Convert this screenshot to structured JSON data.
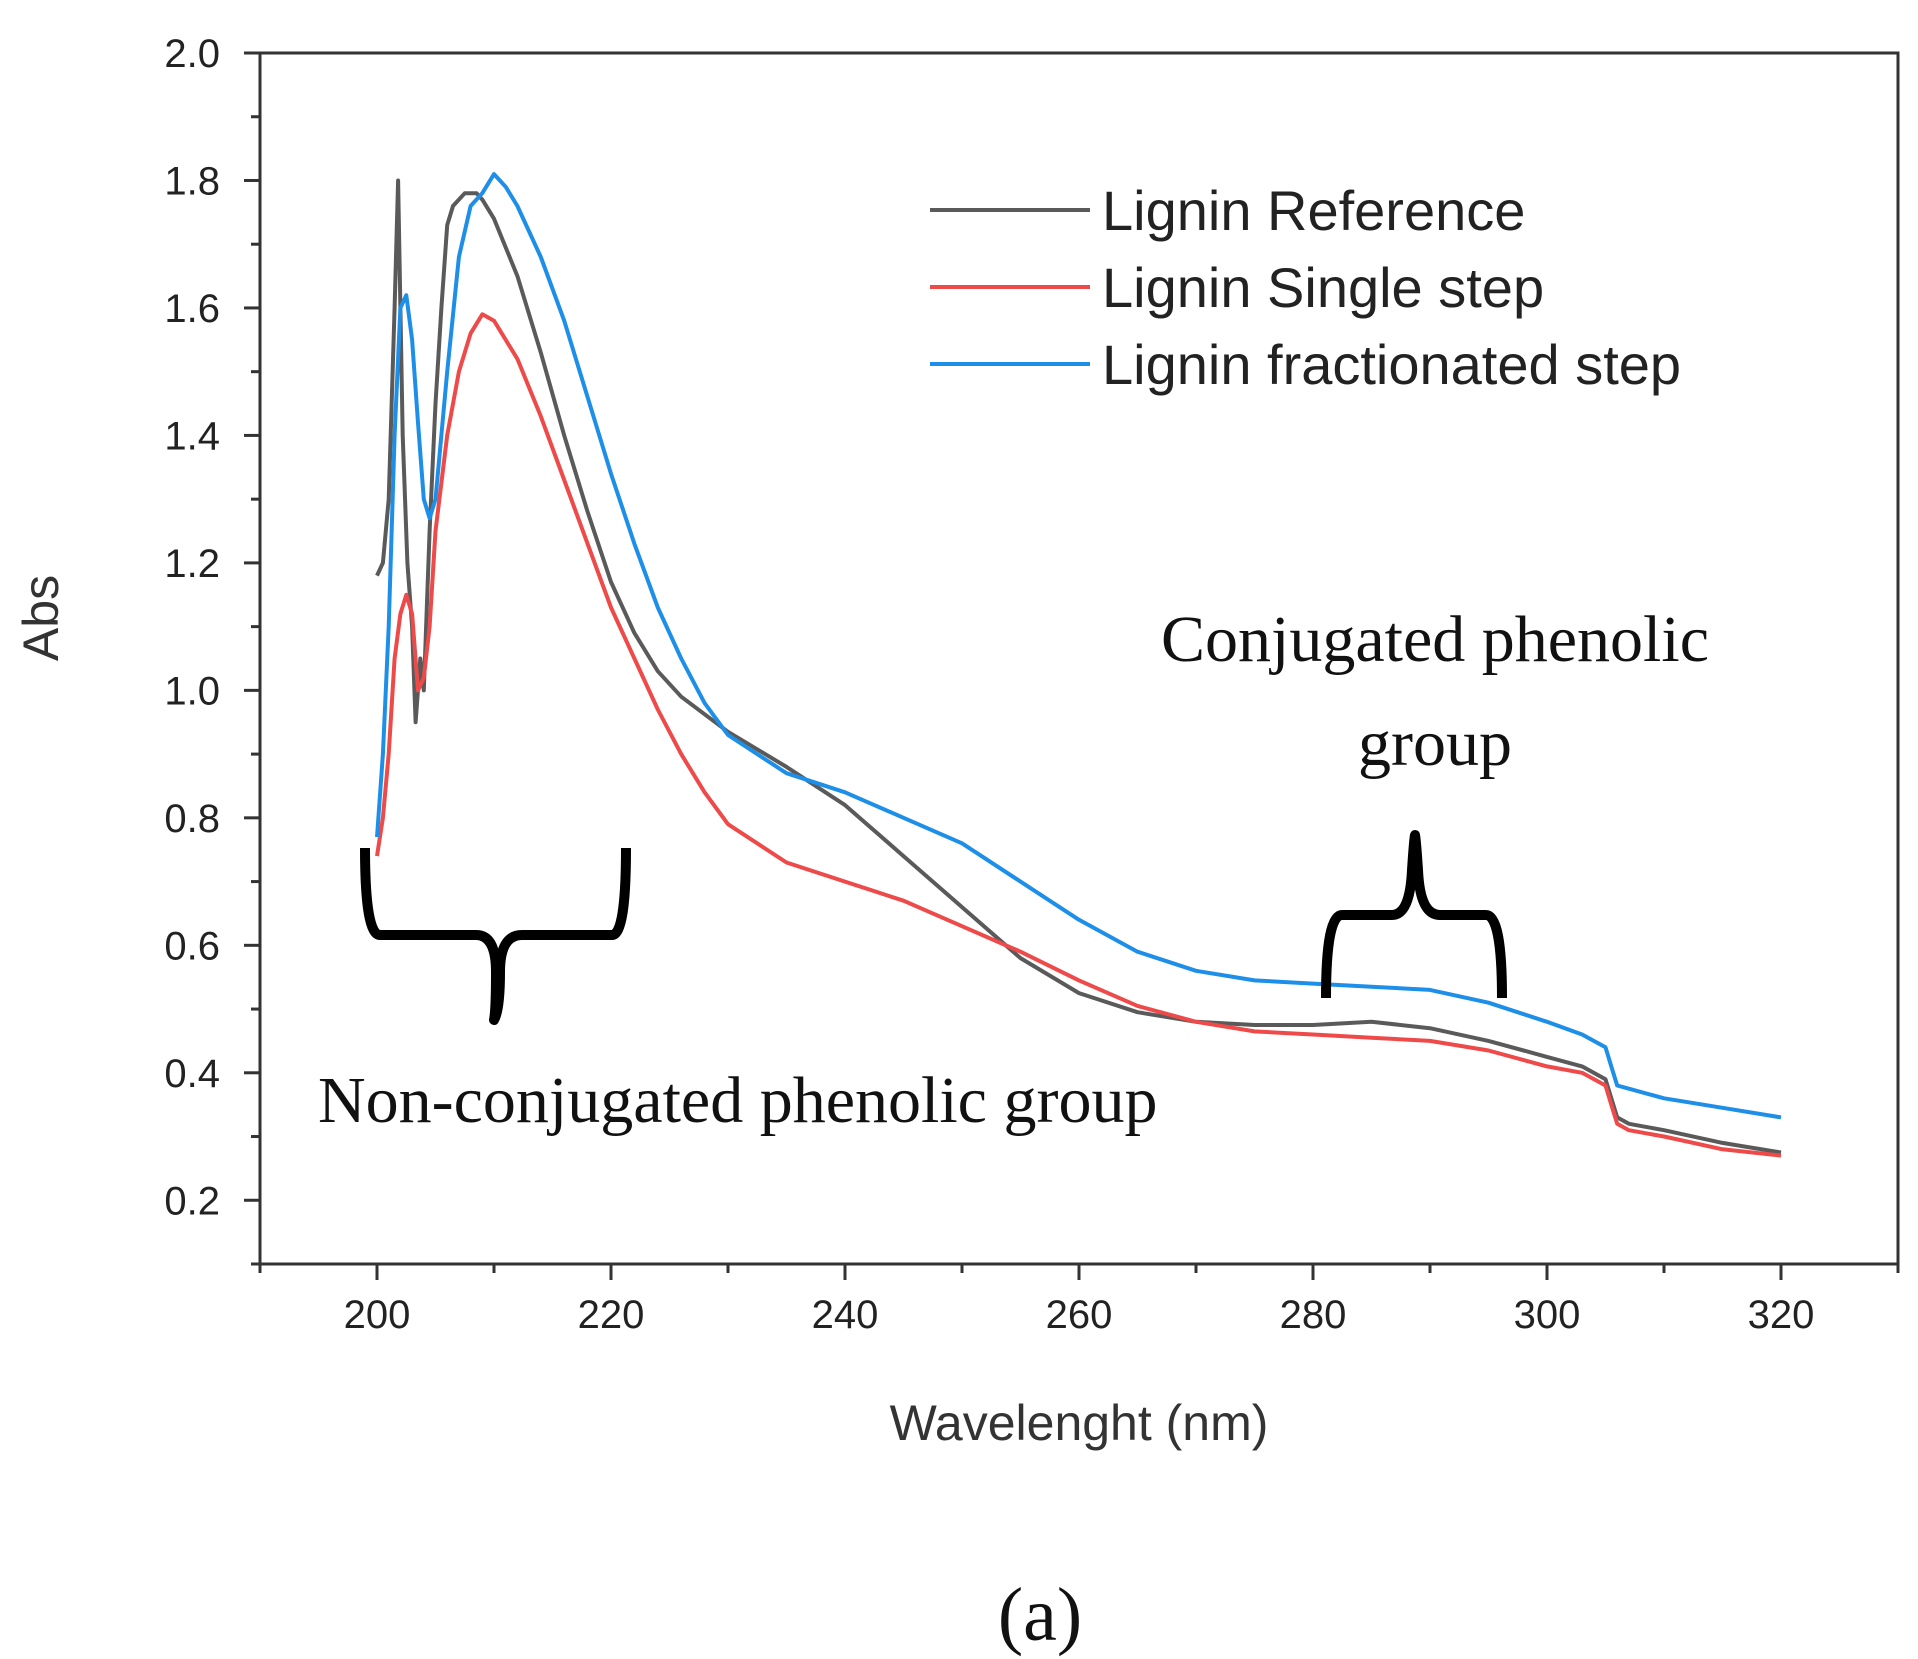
{
  "chart_data": {
    "type": "line",
    "title": "",
    "xlabel": "Wavelenght (nm)",
    "ylabel": "Abs",
    "xlim": [
      190,
      330
    ],
    "ylim": [
      0.1,
      2.0
    ],
    "xticks": [
      200,
      220,
      240,
      260,
      280,
      300,
      320
    ],
    "yticks": [
      0.2,
      0.4,
      0.6,
      0.8,
      1.0,
      1.2,
      1.4,
      1.6,
      1.8,
      2.0
    ],
    "xtick_labels": [
      "200",
      "220",
      "240",
      "260",
      "280",
      "300",
      "320"
    ],
    "ytick_labels": [
      "0.2",
      "0.4",
      "0.6",
      "0.8",
      "1.0",
      "1.2",
      "1.4",
      "1.6",
      "1.8",
      "2.0"
    ],
    "grid": false,
    "legend_position": "top-right",
    "panel_label": "(a)",
    "series": [
      {
        "name": "Lignin Reference",
        "color": "#5a5a5a",
        "points": [
          [
            200,
            1.18
          ],
          [
            200.5,
            1.2
          ],
          [
            201,
            1.3
          ],
          [
            201.5,
            1.6
          ],
          [
            201.8,
            1.8
          ],
          [
            202.2,
            1.4
          ],
          [
            202.6,
            1.2
          ],
          [
            203,
            1.1
          ],
          [
            203.3,
            0.95
          ],
          [
            203.7,
            1.05
          ],
          [
            204,
            1.0
          ],
          [
            204.5,
            1.25
          ],
          [
            205,
            1.45
          ],
          [
            205.5,
            1.6
          ],
          [
            206,
            1.73
          ],
          [
            206.5,
            1.76
          ],
          [
            207.5,
            1.78
          ],
          [
            208.5,
            1.78
          ],
          [
            209,
            1.77
          ],
          [
            210,
            1.74
          ],
          [
            212,
            1.65
          ],
          [
            214,
            1.53
          ],
          [
            216,
            1.4
          ],
          [
            218,
            1.28
          ],
          [
            220,
            1.17
          ],
          [
            222,
            1.09
          ],
          [
            224,
            1.03
          ],
          [
            226,
            0.99
          ],
          [
            230,
            0.935
          ],
          [
            235,
            0.88
          ],
          [
            240,
            0.82
          ],
          [
            245,
            0.74
          ],
          [
            250,
            0.66
          ],
          [
            255,
            0.58
          ],
          [
            260,
            0.525
          ],
          [
            265,
            0.495
          ],
          [
            270,
            0.48
          ],
          [
            275,
            0.475
          ],
          [
            280,
            0.475
          ],
          [
            285,
            0.48
          ],
          [
            290,
            0.47
          ],
          [
            295,
            0.45
          ],
          [
            300,
            0.425
          ],
          [
            303,
            0.41
          ],
          [
            305,
            0.39
          ],
          [
            305.5,
            0.36
          ],
          [
            306,
            0.33
          ],
          [
            307,
            0.32
          ],
          [
            310,
            0.31
          ],
          [
            315,
            0.29
          ],
          [
            320,
            0.275
          ]
        ]
      },
      {
        "name": "Lignin Single step",
        "color": "#ee4a4a",
        "points": [
          [
            200,
            0.74
          ],
          [
            200.5,
            0.8
          ],
          [
            201,
            0.9
          ],
          [
            201.5,
            1.05
          ],
          [
            202,
            1.12
          ],
          [
            202.5,
            1.15
          ],
          [
            203,
            1.12
          ],
          [
            203.5,
            1.0
          ],
          [
            204,
            1.02
          ],
          [
            204.5,
            1.1
          ],
          [
            205,
            1.25
          ],
          [
            206,
            1.4
          ],
          [
            207,
            1.5
          ],
          [
            208,
            1.56
          ],
          [
            209,
            1.59
          ],
          [
            210,
            1.58
          ],
          [
            212,
            1.52
          ],
          [
            214,
            1.43
          ],
          [
            216,
            1.33
          ],
          [
            218,
            1.23
          ],
          [
            220,
            1.13
          ],
          [
            222,
            1.05
          ],
          [
            224,
            0.97
          ],
          [
            226,
            0.9
          ],
          [
            228,
            0.84
          ],
          [
            230,
            0.79
          ],
          [
            235,
            0.73
          ],
          [
            240,
            0.7
          ],
          [
            245,
            0.67
          ],
          [
            250,
            0.63
          ],
          [
            255,
            0.59
          ],
          [
            260,
            0.545
          ],
          [
            265,
            0.505
          ],
          [
            270,
            0.48
          ],
          [
            275,
            0.465
          ],
          [
            280,
            0.46
          ],
          [
            285,
            0.455
          ],
          [
            290,
            0.45
          ],
          [
            295,
            0.435
          ],
          [
            300,
            0.41
          ],
          [
            303,
            0.4
          ],
          [
            305,
            0.38
          ],
          [
            305.5,
            0.35
          ],
          [
            306,
            0.32
          ],
          [
            307,
            0.31
          ],
          [
            310,
            0.3
          ],
          [
            315,
            0.28
          ],
          [
            320,
            0.27
          ]
        ]
      },
      {
        "name": "Lignin fractionated step",
        "color": "#1e8fe8",
        "points": [
          [
            200,
            0.77
          ],
          [
            200.5,
            0.9
          ],
          [
            201,
            1.1
          ],
          [
            201.5,
            1.4
          ],
          [
            202,
            1.6
          ],
          [
            202.5,
            1.62
          ],
          [
            203,
            1.55
          ],
          [
            203.5,
            1.42
          ],
          [
            204,
            1.3
          ],
          [
            204.5,
            1.27
          ],
          [
            205,
            1.3
          ],
          [
            206,
            1.5
          ],
          [
            207,
            1.68
          ],
          [
            208,
            1.76
          ],
          [
            209,
            1.78
          ],
          [
            210,
            1.81
          ],
          [
            211,
            1.79
          ],
          [
            212,
            1.76
          ],
          [
            214,
            1.68
          ],
          [
            216,
            1.58
          ],
          [
            218,
            1.46
          ],
          [
            220,
            1.34
          ],
          [
            222,
            1.23
          ],
          [
            224,
            1.13
          ],
          [
            226,
            1.05
          ],
          [
            228,
            0.98
          ],
          [
            230,
            0.93
          ],
          [
            235,
            0.87
          ],
          [
            240,
            0.84
          ],
          [
            245,
            0.8
          ],
          [
            250,
            0.76
          ],
          [
            255,
            0.7
          ],
          [
            260,
            0.64
          ],
          [
            265,
            0.59
          ],
          [
            270,
            0.56
          ],
          [
            275,
            0.545
          ],
          [
            280,
            0.54
          ],
          [
            285,
            0.535
          ],
          [
            290,
            0.53
          ],
          [
            295,
            0.51
          ],
          [
            300,
            0.48
          ],
          [
            303,
            0.46
          ],
          [
            305,
            0.44
          ],
          [
            305.5,
            0.41
          ],
          [
            306,
            0.38
          ],
          [
            307,
            0.375
          ],
          [
            310,
            0.36
          ],
          [
            315,
            0.345
          ],
          [
            320,
            0.33
          ]
        ]
      }
    ],
    "annotations": [
      {
        "name": "non-conjugated",
        "lines": [
          "Non-conjugated phenolic group"
        ]
      },
      {
        "name": "conjugated",
        "lines": [
          "Conjugated phenolic",
          "group"
        ]
      }
    ]
  }
}
